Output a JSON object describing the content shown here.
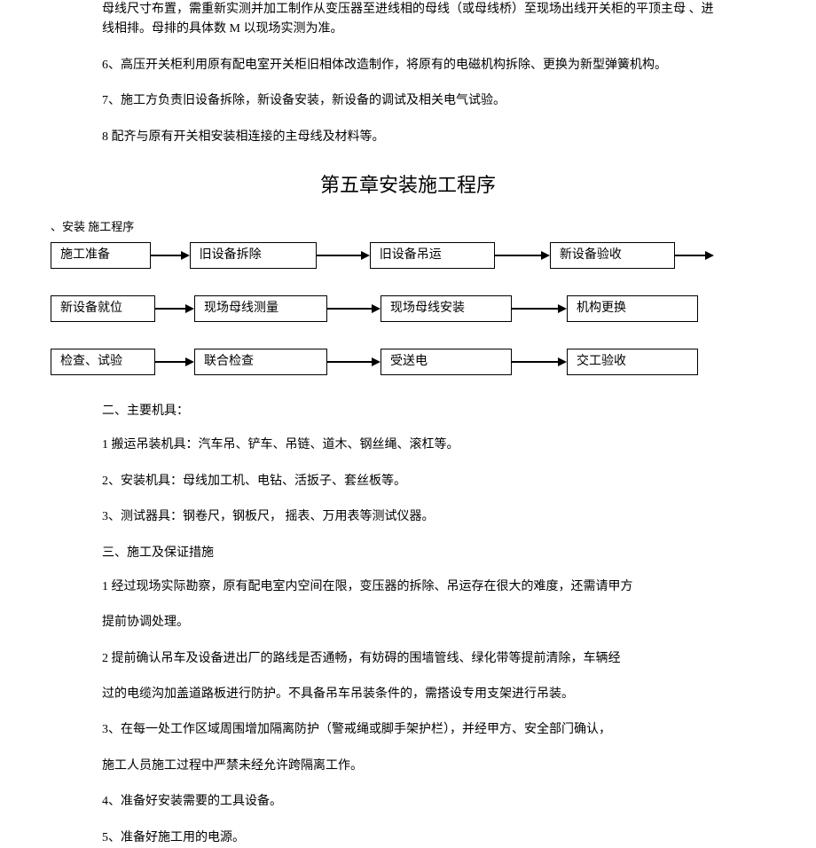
{
  "intro_paragraphs": [
    "母线尺寸布置，需重新实测并加工制作从变压器至进线相的母线（或母线桥）至现场出线开关柜的平顶主母 、进线相排。母排的具体数 M 以现场实测为准。",
    "6、高压开关柜利用原有配电室开关柜旧相体改造制作，将原有的电磁机构拆除、更换为新型弹簧机构。",
    "7、施工方负责旧设备拆除，新设备安装，新设备的调试及相关电气试验。",
    "8 配齐与原有开关相安装相连接的主母线及材料等。"
  ],
  "chapter_title": "第五章安装施工程序",
  "flow_label": "、安装 施工程序",
  "flowchart": {
    "type": "flowchart",
    "box_border_color": "#000000",
    "box_bg_color": "#ffffff",
    "arrow_color": "#000000",
    "font_size": 14,
    "rows": [
      {
        "boxes": [
          {
            "label": "施工准备",
            "width": 118
          },
          {
            "label": "旧设备拆除",
            "width": 150
          },
          {
            "label": "旧设备吊运",
            "width": 148
          },
          {
            "label": "新设备验收",
            "width": 148
          }
        ],
        "gaps": [
          44,
          60,
          62,
          44
        ]
      },
      {
        "boxes": [
          {
            "label": "新设备就位",
            "width": 118
          },
          {
            "label": "现场母线测量",
            "width": 150
          },
          {
            "label": "现场母线安装",
            "width": 148
          },
          {
            "label": "机构更换",
            "width": 148
          }
        ],
        "gaps": [
          44,
          60,
          62,
          0
        ]
      },
      {
        "boxes": [
          {
            "label": "检查、试验",
            "width": 118
          },
          {
            "label": "联合检查",
            "width": 150
          },
          {
            "label": "受送电",
            "width": 148
          },
          {
            "label": "交工验收",
            "width": 148
          }
        ],
        "gaps": [
          44,
          60,
          62,
          0
        ]
      }
    ]
  },
  "section2_label": "二、主要机具：",
  "section2_items": [
    "1 搬运吊装机具：汽车吊、铲车、吊链、道木、钢丝绳、滚杠等。",
    "2、安装机具：母线加工机、电钻、活扳子、套丝板等。",
    "3、测试器具：钢卷尺，钢板尺， 摇表、万用表等测试仪器。"
  ],
  "section3_label": "三、施工及保证措施",
  "section3_items": [
    "1 经过现场实际勘察，原有配电室内空间在限，变压器的拆除、吊运存在很大的难度，还需请甲方",
    "提前协调处理。",
    "2 提前确认吊车及设备进出厂的路线是否通畅，有妨碍的围墙管线、绿化带等提前清除，车辆经",
    "过的电缆沟加盖道路板进行防护。不具备吊车吊装条件的，需搭设专用支架进行吊装。",
    "3、在每一处工作区域周围增加隔离防护（警戒绳或脚手架护栏），并经甲方、安全部门确认，",
    "施工人员施工过程中严禁未经允许跨隔离工作。",
    "4、准备好安装需要的工具设备。",
    "5、准备好施工用的电源。"
  ]
}
